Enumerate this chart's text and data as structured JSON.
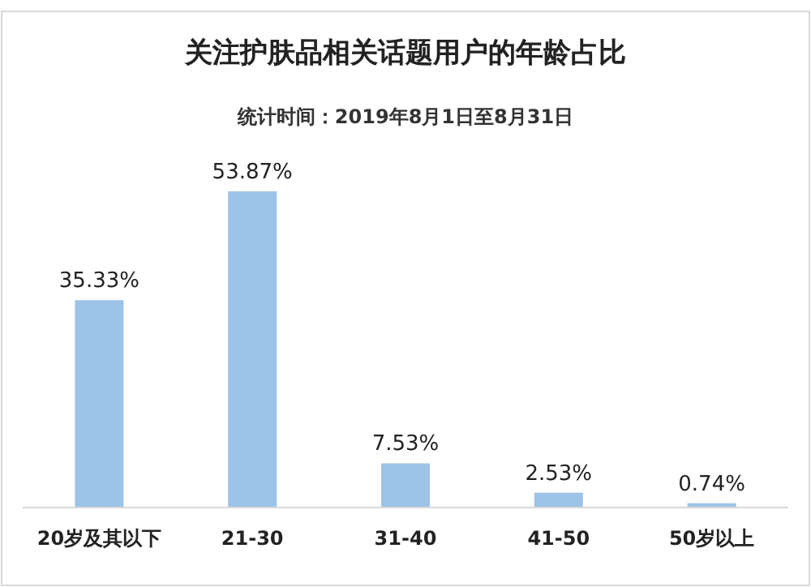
{
  "chart_data": {
    "type": "bar",
    "title": "关注护肤品相关话题用户的年龄占比",
    "subtitle": "统计时间：2019年8月1日至8月31日",
    "categories": [
      "20岁及其以下",
      "21-30",
      "31-40",
      "41-50",
      "50岁以上"
    ],
    "values": [
      35.33,
      53.87,
      7.53,
      2.53,
      0.74
    ],
    "value_labels": [
      "35.33%",
      "53.87%",
      "7.53%",
      "2.53%",
      "0.74%"
    ],
    "color": "#9dc3e6"
  }
}
